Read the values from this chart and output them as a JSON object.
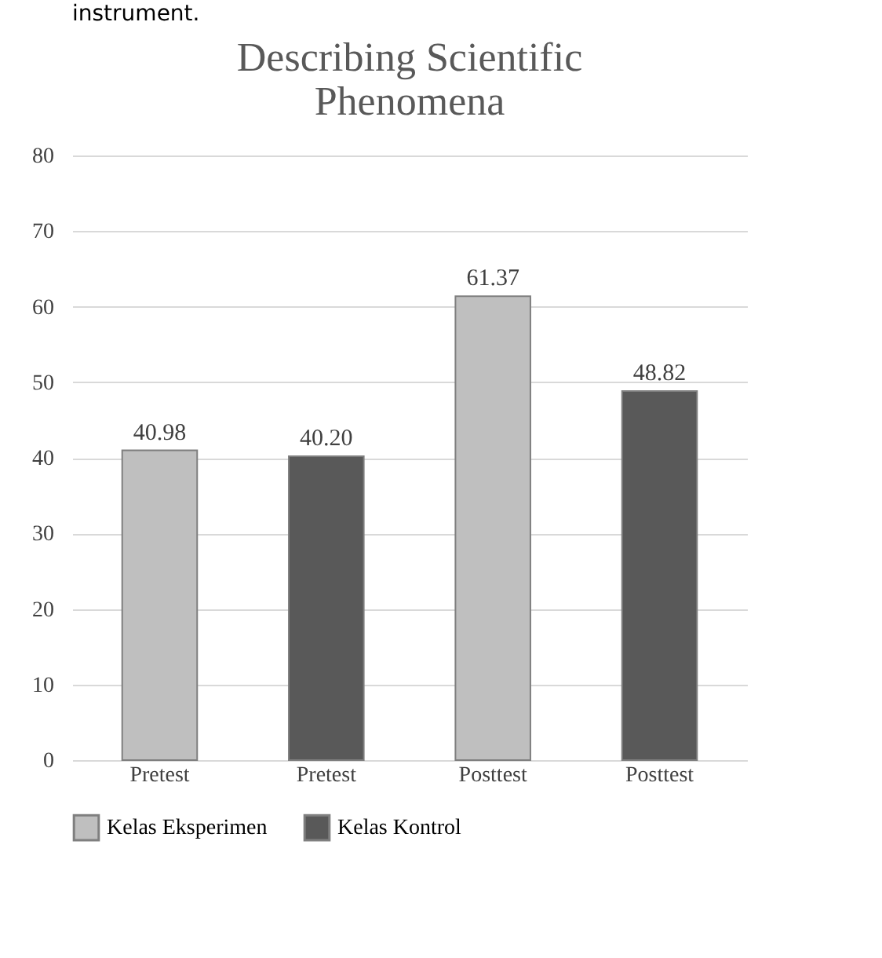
{
  "chart_data": {
    "type": "bar",
    "title": "Describing Scientific Phenomena",
    "annotations": [
      "instrument."
    ],
    "categories": [
      "Pretest",
      "Pretest",
      "Posttest",
      "Posttest"
    ],
    "series": [
      {
        "name": "Kelas Eksperimen",
        "color": "#bfbfbf",
        "values": [
          40.98,
          null,
          61.37,
          null
        ],
        "value_labels": [
          "40.98",
          null,
          "61.37",
          null
        ]
      },
      {
        "name": "Kelas Kontrol",
        "color": "#595959",
        "values": [
          null,
          40.2,
          null,
          48.82
        ],
        "value_labels": [
          null,
          "40.20",
          null,
          "48.82"
        ]
      }
    ],
    "ylim": [
      0,
      80
    ],
    "yticks": [
      0,
      10,
      20,
      30,
      40,
      50,
      60,
      70,
      80
    ],
    "grid": "y",
    "legend": "bottom"
  }
}
